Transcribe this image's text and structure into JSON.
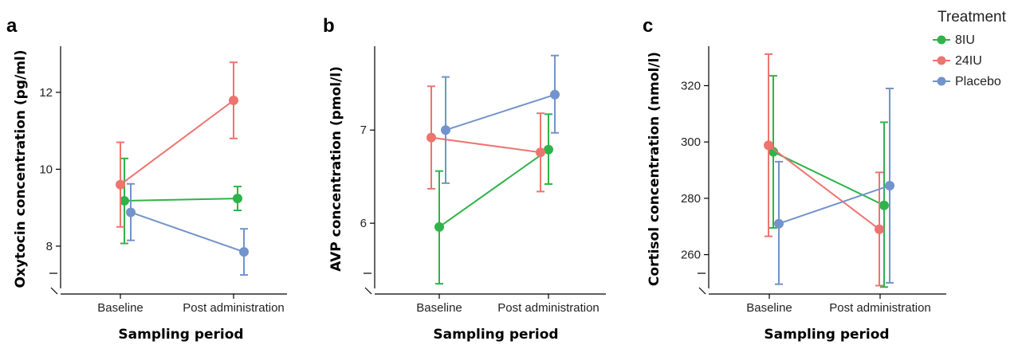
{
  "legend": {
    "title": "Treatment",
    "entries": [
      {
        "name": "8IU",
        "color": "#2fb34a"
      },
      {
        "name": "24IU",
        "color": "#ee7470"
      },
      {
        "name": "Placebo",
        "color": "#7293cb"
      }
    ],
    "placement": "top-right"
  },
  "chart_data": [
    {
      "panel": "a",
      "type": "line",
      "categories": [
        "Baseline",
        "Post administration"
      ],
      "xlabel": "Sampling period",
      "ylabel": "Oxytocin concentration (pg/ml)",
      "ylim": [
        6.9,
        13.2
      ],
      "yticks": [
        8,
        10,
        12
      ],
      "grid": false,
      "series": [
        {
          "name": "8IU",
          "values": [
            9.18,
            9.24
          ],
          "err_low": [
            8.07,
            8.93
          ],
          "err_high": [
            10.28,
            9.55
          ]
        },
        {
          "name": "24IU",
          "values": [
            9.6,
            11.79
          ],
          "err_low": [
            8.5,
            10.8
          ],
          "err_high": [
            10.7,
            12.78
          ]
        },
        {
          "name": "Placebo",
          "values": [
            8.88,
            7.85
          ],
          "err_low": [
            8.15,
            7.25
          ],
          "err_high": [
            9.62,
            8.45
          ]
        }
      ]
    },
    {
      "panel": "b",
      "type": "line",
      "categories": [
        "Baseline",
        "Post administration"
      ],
      "xlabel": "Sampling period",
      "ylabel": "AVP concentration (pmol/l)",
      "ylim": [
        5.3,
        7.9
      ],
      "yticks": [
        6,
        7
      ],
      "grid": false,
      "series": [
        {
          "name": "8IU",
          "values": [
            5.96,
            6.79
          ],
          "err_low": [
            5.35,
            6.42
          ],
          "err_high": [
            6.56,
            7.17
          ]
        },
        {
          "name": "24IU",
          "values": [
            6.92,
            6.76
          ],
          "err_low": [
            6.37,
            6.34
          ],
          "err_high": [
            7.47,
            7.18
          ]
        },
        {
          "name": "Placebo",
          "values": [
            7.0,
            7.38
          ],
          "err_low": [
            6.43,
            6.97
          ],
          "err_high": [
            7.57,
            7.8
          ]
        }
      ]
    },
    {
      "panel": "c",
      "type": "line",
      "categories": [
        "Baseline",
        "Post administration"
      ],
      "xlabel": "Sampling period",
      "ylabel": "Cortisol concentration (nmol/l)",
      "ylim": [
        248,
        334
      ],
      "yticks": [
        260,
        280,
        300,
        320
      ],
      "grid": false,
      "series": [
        {
          "name": "8IU",
          "values": [
            296.5,
            277.5
          ],
          "err_low": [
            269.5,
            248.5
          ],
          "err_high": [
            323.5,
            307.0
          ]
        },
        {
          "name": "24IU",
          "values": [
            298.8,
            269.0
          ],
          "err_low": [
            266.5,
            249.0
          ],
          "err_high": [
            331.2,
            289.2
          ]
        },
        {
          "name": "Placebo",
          "values": [
            271.0,
            284.5
          ],
          "err_low": [
            249.5,
            250.0
          ],
          "err_high": [
            293.0,
            319.0
          ]
        }
      ]
    }
  ]
}
